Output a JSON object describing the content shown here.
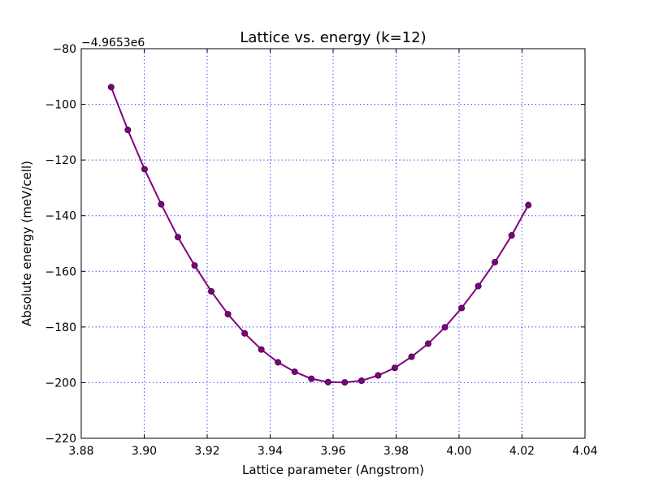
{
  "chart_data": {
    "type": "line",
    "title": "Lattice vs. energy (k=12)",
    "xlabel": "Lattice parameter (Angstrom)",
    "ylabel": "Absolute energy (meV/cell)",
    "y_offset_label": "−4.9653e6",
    "xlim": [
      3.88,
      4.04
    ],
    "ylim": [
      -220,
      -80
    ],
    "grid": true,
    "xticks": [
      3.88,
      3.9,
      3.92,
      3.94,
      3.96,
      3.98,
      4.0,
      4.02,
      4.04
    ],
    "xtick_labels": [
      "3.88",
      "3.90",
      "3.92",
      "3.94",
      "3.96",
      "3.98",
      "4.00",
      "4.02",
      "4.04"
    ],
    "yticks": [
      -80,
      -100,
      -120,
      -140,
      -160,
      -180,
      -200,
      -220
    ],
    "ytick_labels": [
      "−80",
      "−100",
      "−120",
      "−140",
      "−160",
      "−180",
      "−200",
      "−220"
    ],
    "color": "#800080",
    "series": [
      {
        "x": [
          3.8895,
          3.8948,
          3.9001,
          3.9054,
          3.9107,
          3.916,
          3.9213,
          3.9266,
          3.9319,
          3.9372,
          3.9425,
          3.9478,
          3.9531,
          3.9584,
          3.9637,
          3.969,
          3.9743,
          3.9796,
          3.9849,
          3.9902,
          3.9955,
          4.0008,
          4.0061,
          4.0114,
          4.0167,
          4.022
        ],
        "y": [
          -93.8,
          -109.2,
          -123.3,
          -135.9,
          -147.7,
          -157.9,
          -167.2,
          -175.4,
          -182.3,
          -188.1,
          -192.7,
          -196.1,
          -198.6,
          -199.8,
          -199.9,
          -199.3,
          -197.4,
          -194.7,
          -190.7,
          -186.0,
          -180.1,
          -173.2,
          -165.3,
          -156.7,
          -147.1,
          -136.2
        ]
      }
    ]
  }
}
